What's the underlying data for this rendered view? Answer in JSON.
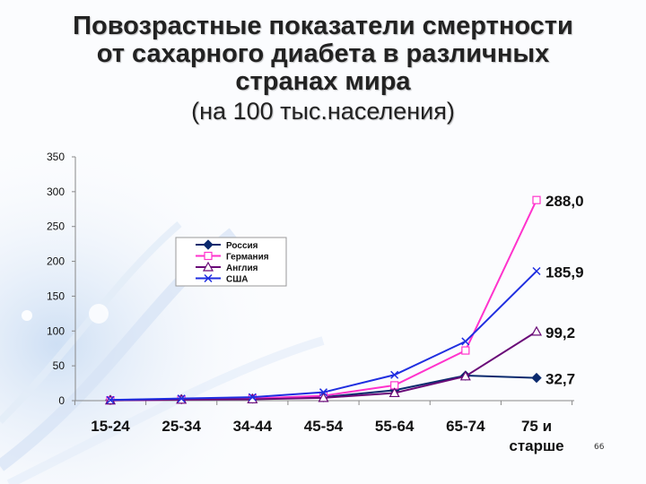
{
  "slide": {
    "title_lines": [
      "Повозрастные показатели смертности",
      "от сахарного диабета в различных",
      "странах мира"
    ],
    "subtitle": "(на 100 тыс.населения)",
    "slide_number": "66"
  },
  "colors": {
    "background": "#fbfcfe",
    "russia": "#0b2a6e",
    "germany": "#ff33cc",
    "england": "#6a0a78",
    "usa": "#1f2ee0"
  },
  "chart_data": {
    "type": "line",
    "categories": [
      "15-24",
      "25-34",
      "34-44",
      "45-54",
      "55-64",
      "65-74",
      "75 и старше"
    ],
    "ylim": [
      0,
      350
    ],
    "yticks": [
      0,
      50,
      100,
      150,
      200,
      250,
      300,
      350
    ],
    "grid": false,
    "legend_placement": "upper-left",
    "series": [
      {
        "name": "Россия",
        "marker": "diamond",
        "values": [
          1,
          2,
          3,
          5,
          15,
          36,
          32.7
        ]
      },
      {
        "name": "Германия",
        "marker": "square",
        "values": [
          0.5,
          1.5,
          3,
          7,
          22,
          72,
          288.0
        ]
      },
      {
        "name": "Англия",
        "marker": "triangle",
        "values": [
          0.5,
          1.5,
          2,
          4,
          11,
          35,
          99.2
        ]
      },
      {
        "name": "США",
        "marker": "x",
        "values": [
          1,
          3,
          5,
          12,
          37,
          85,
          185.9
        ]
      }
    ],
    "end_labels": [
      "32,7",
      "288,0",
      "99,2",
      "185,9"
    ]
  }
}
